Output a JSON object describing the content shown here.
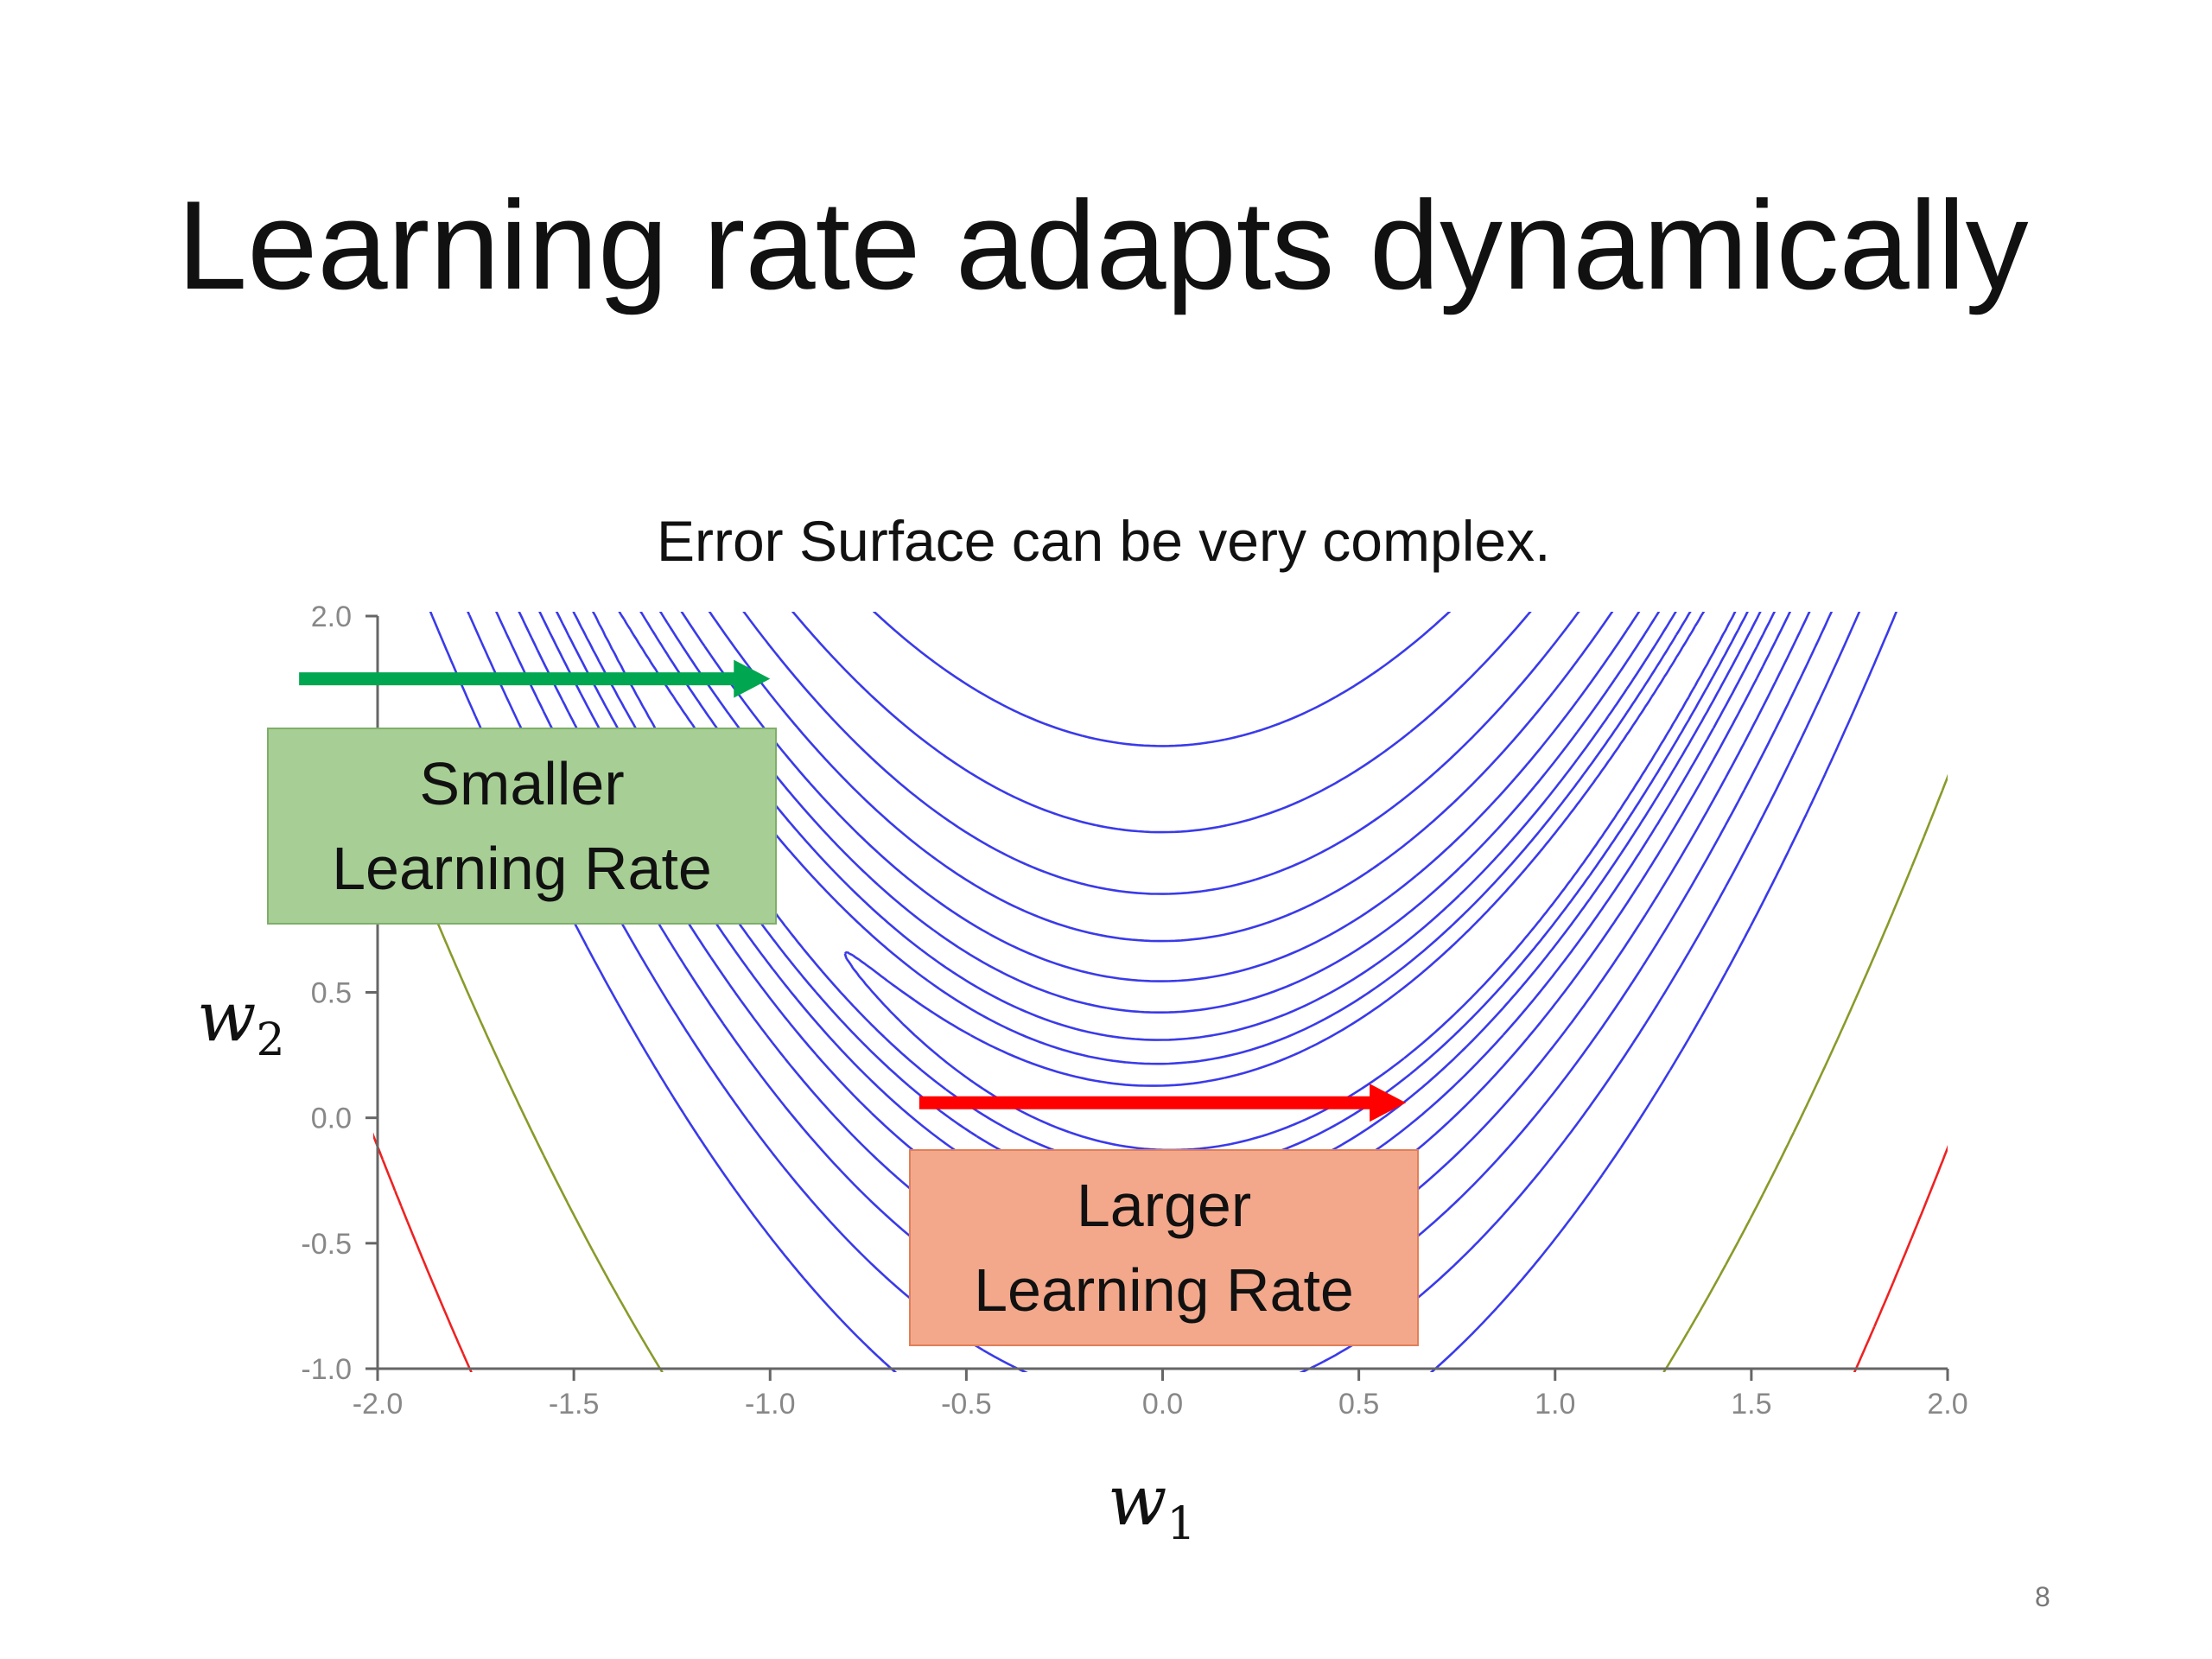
{
  "slide": {
    "title": "Learning rate adapts dynamically",
    "caption": "Error Surface can be very complex.",
    "page_number": "8"
  },
  "annotations": {
    "smaller_label_line1": "Smaller",
    "smaller_label_line2": "Learning Rate",
    "larger_label_line1": "Larger",
    "larger_label_line2": "Learning Rate",
    "smaller_color": "#00a650",
    "larger_color": "#ff0000",
    "smaller_box_color": "#a7cf95",
    "larger_box_color": "#f3a88b",
    "smaller_arrow": {
      "from": [
        -2.2,
        1.75
      ],
      "to": [
        -1.0,
        1.75
      ]
    },
    "larger_arrow": {
      "from": [
        -0.62,
        0.06
      ],
      "to": [
        0.62,
        0.06
      ]
    }
  },
  "chart_data": {
    "type": "contour",
    "function": "Rosenbrock-like error surface (valley along w2 = w1^2)",
    "xlabel_symbol": "w",
    "xlabel_sub": "1",
    "ylabel_symbol": "w",
    "ylabel_sub": "2",
    "xlim": [
      -2.0,
      2.0
    ],
    "ylim": [
      -1.0,
      2.0
    ],
    "xticks": [
      "-2.0",
      "-1.5",
      "-1.0",
      "-0.5",
      "0.0",
      "0.5",
      "1.0",
      "1.5",
      "2.0"
    ],
    "yticks": [
      "2.0",
      "0.5",
      "0.0",
      "-0.5",
      "-1.0"
    ],
    "grid": false,
    "colors": {
      "contour_main": "#3a3aea",
      "contour_outer": "#8a9a2a",
      "contour_corner": "#ee2222"
    }
  }
}
